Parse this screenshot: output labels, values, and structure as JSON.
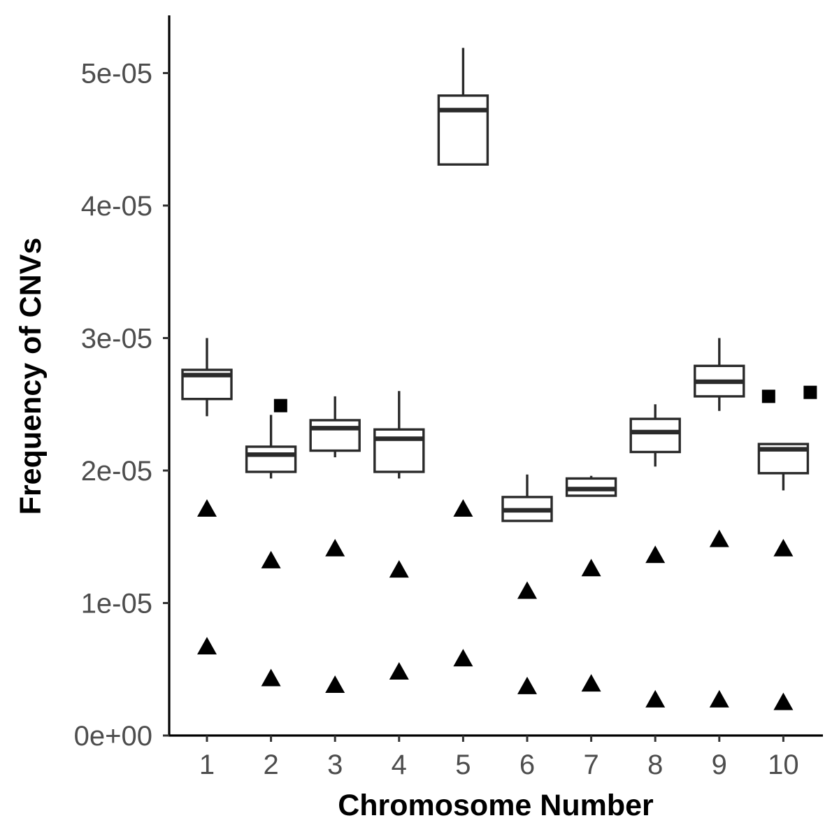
{
  "chart_data": {
    "type": "box",
    "xlabel": "Chromosome Number",
    "ylabel": "Frequency of CNVs",
    "ylim": [
      0,
      5.45e-05
    ],
    "yticks": [
      0,
      1e-05,
      2e-05,
      3e-05,
      4e-05,
      5e-05
    ],
    "ytick_labels": [
      "0e+00",
      "1e-05",
      "2e-05",
      "3e-05",
      "4e-05",
      "5e-05"
    ],
    "categories": [
      "1",
      "2",
      "3",
      "4",
      "5",
      "6",
      "7",
      "8",
      "9",
      "10"
    ],
    "grid": false,
    "legend": "none",
    "boxes": [
      {
        "category": "1",
        "whisker_low": 2.41e-05,
        "q1": 2.54e-05,
        "median": 2.72e-05,
        "q3": 2.76e-05,
        "whisker_high": 3e-05
      },
      {
        "category": "2",
        "whisker_low": 1.94e-05,
        "q1": 1.99e-05,
        "median": 2.12e-05,
        "q3": 2.18e-05,
        "whisker_high": 2.42e-05
      },
      {
        "category": "3",
        "whisker_low": 2.1e-05,
        "q1": 2.15e-05,
        "median": 2.32e-05,
        "q3": 2.38e-05,
        "whisker_high": 2.56e-05
      },
      {
        "category": "4",
        "whisker_low": 1.94e-05,
        "q1": 1.99e-05,
        "median": 2.24e-05,
        "q3": 2.31e-05,
        "whisker_high": 2.6e-05
      },
      {
        "category": "5",
        "whisker_low": 4.31e-05,
        "q1": 4.31e-05,
        "median": 4.72e-05,
        "q3": 4.83e-05,
        "whisker_high": 5.19e-05
      },
      {
        "category": "6",
        "whisker_low": 1.62e-05,
        "q1": 1.62e-05,
        "median": 1.7e-05,
        "q3": 1.8e-05,
        "whisker_high": 1.97e-05
      },
      {
        "category": "7",
        "whisker_low": 1.81e-05,
        "q1": 1.81e-05,
        "median": 1.86e-05,
        "q3": 1.94e-05,
        "whisker_high": 1.96e-05
      },
      {
        "category": "8",
        "whisker_low": 2.03e-05,
        "q1": 2.14e-05,
        "median": 2.29e-05,
        "q3": 2.39e-05,
        "whisker_high": 2.5e-05
      },
      {
        "category": "9",
        "whisker_low": 2.45e-05,
        "q1": 2.56e-05,
        "median": 2.67e-05,
        "q3": 2.79e-05,
        "whisker_high": 3e-05
      },
      {
        "category": "10",
        "whisker_low": 1.85e-05,
        "q1": 1.98e-05,
        "median": 2.16e-05,
        "q3": 2.2e-05,
        "whisker_high": 2.2e-05
      }
    ],
    "outliers": [
      {
        "category": "2",
        "offset": 0.15,
        "value": 2.49e-05,
        "shape": "square"
      },
      {
        "category": "10",
        "offset": -0.23,
        "value": 2.56e-05,
        "shape": "square"
      },
      {
        "category": "10",
        "offset": 0.42,
        "value": 2.59e-05,
        "shape": "square"
      }
    ],
    "points": [
      {
        "category": "1",
        "value": 1.71e-05,
        "shape": "triangle"
      },
      {
        "category": "1",
        "value": 6.7e-06,
        "shape": "triangle"
      },
      {
        "category": "2",
        "value": 1.32e-05,
        "shape": "triangle"
      },
      {
        "category": "2",
        "value": 4.3e-06,
        "shape": "triangle"
      },
      {
        "category": "3",
        "value": 1.41e-05,
        "shape": "triangle"
      },
      {
        "category": "3",
        "value": 3.8e-06,
        "shape": "triangle"
      },
      {
        "category": "4",
        "value": 1.25e-05,
        "shape": "triangle"
      },
      {
        "category": "4",
        "value": 4.8e-06,
        "shape": "triangle"
      },
      {
        "category": "5",
        "value": 1.71e-05,
        "shape": "triangle"
      },
      {
        "category": "5",
        "value": 5.8e-06,
        "shape": "triangle"
      },
      {
        "category": "6",
        "value": 1.09e-05,
        "shape": "triangle"
      },
      {
        "category": "6",
        "value": 3.7e-06,
        "shape": "triangle"
      },
      {
        "category": "7",
        "value": 1.26e-05,
        "shape": "triangle"
      },
      {
        "category": "7",
        "value": 3.9e-06,
        "shape": "triangle"
      },
      {
        "category": "8",
        "value": 1.36e-05,
        "shape": "triangle"
      },
      {
        "category": "8",
        "value": 2.7e-06,
        "shape": "triangle"
      },
      {
        "category": "9",
        "value": 1.48e-05,
        "shape": "triangle"
      },
      {
        "category": "9",
        "value": 2.7e-06,
        "shape": "triangle"
      },
      {
        "category": "10",
        "value": 1.41e-05,
        "shape": "triangle"
      },
      {
        "category": "10",
        "value": 2.5e-06,
        "shape": "triangle"
      }
    ]
  }
}
